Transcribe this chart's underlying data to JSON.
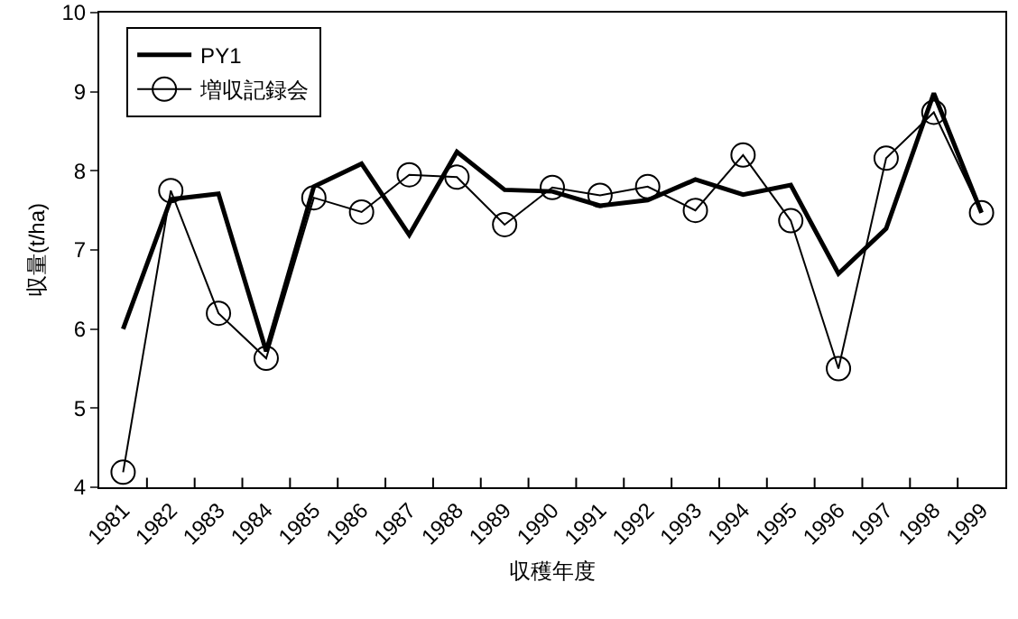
{
  "chart_data": {
    "type": "line",
    "xlabel": "収穫年度",
    "ylabel": "収量(t/ha)",
    "categories": [
      "1981",
      "1982",
      "1983",
      "1984",
      "1985",
      "1986",
      "1987",
      "1988",
      "1989",
      "1990",
      "1991",
      "1992",
      "1993",
      "1994",
      "1995",
      "1996",
      "1997",
      "1998",
      "1999"
    ],
    "series": [
      {
        "name": "PY1",
        "color": "#000000",
        "marker": "none",
        "values": [
          6.0,
          7.64,
          7.71,
          5.72,
          7.8,
          8.09,
          7.19,
          8.24,
          7.76,
          7.74,
          7.56,
          7.63,
          7.89,
          7.7,
          7.82,
          6.7,
          7.27,
          8.98,
          7.47
        ]
      },
      {
        "name": "増収記録会",
        "color": "#000000",
        "marker": "circle",
        "values": [
          4.19,
          7.75,
          6.2,
          5.63,
          7.66,
          7.48,
          7.95,
          7.92,
          7.32,
          7.79,
          7.69,
          7.8,
          7.5,
          8.2,
          7.37,
          5.5,
          8.16,
          8.74,
          7.47
        ]
      }
    ],
    "ylim": [
      4,
      10
    ],
    "yticks": [
      4,
      5,
      6,
      7,
      8,
      9,
      10
    ],
    "grid": false,
    "legend": "top left",
    "line_style": "solid"
  }
}
